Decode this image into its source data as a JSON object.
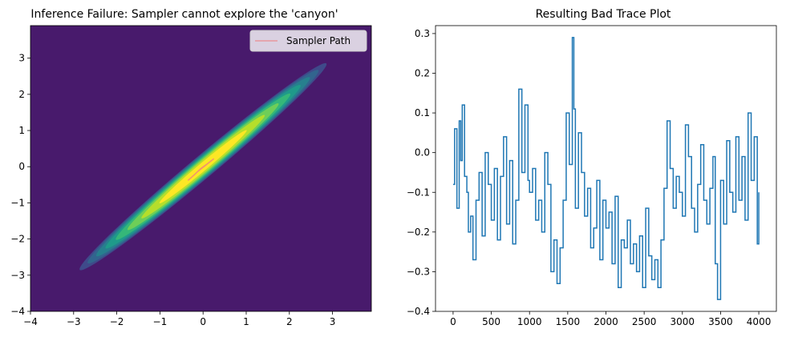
{
  "chart_data": [
    {
      "type": "contour",
      "title": "Inference Failure: Sampler cannot explore the 'canyon'",
      "xlabel": "",
      "ylabel": "",
      "xlim": [
        -4,
        3.9
      ],
      "ylim": [
        -4,
        3.9
      ],
      "xticks": [
        -4,
        -3,
        -2,
        -1,
        0,
        1,
        2,
        3
      ],
      "yticks": [
        -4,
        -3,
        -2,
        -1,
        0,
        1,
        2,
        3
      ],
      "background_color": "#481a6c",
      "distribution": {
        "family": "bivariate normal",
        "mean": [
          0,
          0
        ],
        "sd": [
          1,
          1
        ],
        "correlation": 0.99
      },
      "contour_levels": [
        {
          "level": 1,
          "color": "#3f4a8a"
        },
        {
          "level": 2,
          "color": "#32648e"
        },
        {
          "level": 3,
          "color": "#277f8e"
        },
        {
          "level": 4,
          "color": "#1f9a8a"
        },
        {
          "level": 5,
          "color": "#35b779"
        },
        {
          "level": 6,
          "color": "#6ece58"
        },
        {
          "level": 7,
          "color": "#b5de2b"
        },
        {
          "level": 8,
          "color": "#fde725"
        }
      ],
      "sampler_path": {
        "label": "Sampler Path",
        "color": "#f08080",
        "points": [
          [
            -0.35,
            -0.38
          ],
          [
            -0.2,
            -0.22
          ],
          [
            -0.05,
            -0.05
          ],
          [
            0.1,
            0.08
          ],
          [
            0.25,
            0.22
          ],
          [
            0.05,
            0.03
          ],
          [
            -0.12,
            -0.13
          ]
        ]
      },
      "legend": {
        "position": "top-right",
        "entries": [
          "Sampler Path"
        ]
      }
    },
    {
      "type": "line",
      "title": "Resulting Bad Trace Plot",
      "xlabel": "",
      "ylabel": "",
      "xlim": [
        -230,
        4230
      ],
      "ylim": [
        -0.4,
        0.32
      ],
      "xticks": [
        0,
        500,
        1000,
        1500,
        2000,
        2500,
        3000,
        3500,
        4000
      ],
      "yticks": [
        -0.4,
        -0.3,
        -0.2,
        -0.1,
        0.0,
        0.1,
        0.2,
        0.3
      ],
      "ytick_labels": [
        "−0.4",
        "−0.3",
        "−0.2",
        "−0.1",
        "0.0",
        "0.1",
        "0.2",
        "0.3"
      ],
      "series": [
        {
          "name": "trace",
          "color": "#1f77b4",
          "x": [
            0,
            20,
            50,
            80,
            100,
            120,
            150,
            180,
            200,
            230,
            260,
            300,
            340,
            380,
            420,
            460,
            500,
            540,
            580,
            620,
            660,
            700,
            740,
            780,
            820,
            860,
            900,
            940,
            980,
            1000,
            1040,
            1080,
            1120,
            1160,
            1200,
            1240,
            1280,
            1320,
            1360,
            1400,
            1440,
            1480,
            1520,
            1560,
            1580,
            1600,
            1640,
            1680,
            1720,
            1760,
            1800,
            1840,
            1880,
            1920,
            1960,
            2000,
            2040,
            2080,
            2120,
            2160,
            2200,
            2240,
            2280,
            2320,
            2360,
            2400,
            2440,
            2480,
            2520,
            2560,
            2600,
            2640,
            2680,
            2720,
            2760,
            2800,
            2840,
            2880,
            2920,
            2960,
            3000,
            3040,
            3080,
            3120,
            3160,
            3200,
            3240,
            3280,
            3320,
            3360,
            3400,
            3430,
            3460,
            3500,
            3540,
            3580,
            3620,
            3660,
            3700,
            3740,
            3780,
            3820,
            3860,
            3900,
            3940,
            3980,
            4000
          ],
          "y": [
            -0.08,
            0.06,
            -0.14,
            0.08,
            -0.02,
            0.12,
            -0.06,
            -0.1,
            -0.2,
            -0.16,
            -0.27,
            -0.12,
            -0.05,
            -0.21,
            0.0,
            -0.08,
            -0.17,
            -0.04,
            -0.22,
            -0.06,
            0.04,
            -0.18,
            -0.02,
            -0.23,
            -0.12,
            0.16,
            -0.05,
            0.12,
            -0.07,
            -0.1,
            -0.04,
            -0.17,
            -0.12,
            -0.2,
            0.0,
            -0.08,
            -0.3,
            -0.22,
            -0.33,
            -0.24,
            -0.12,
            0.1,
            -0.03,
            0.29,
            0.11,
            -0.14,
            0.05,
            -0.05,
            -0.16,
            -0.09,
            -0.24,
            -0.19,
            -0.07,
            -0.27,
            -0.12,
            -0.19,
            -0.15,
            -0.28,
            -0.11,
            -0.34,
            -0.22,
            -0.24,
            -0.17,
            -0.28,
            -0.23,
            -0.3,
            -0.21,
            -0.34,
            -0.14,
            -0.26,
            -0.32,
            -0.27,
            -0.34,
            -0.22,
            -0.09,
            0.08,
            -0.04,
            -0.14,
            -0.06,
            -0.1,
            -0.16,
            0.07,
            -0.01,
            -0.14,
            -0.2,
            -0.08,
            0.02,
            -0.12,
            -0.18,
            -0.09,
            -0.01,
            -0.28,
            -0.37,
            -0.07,
            -0.18,
            0.03,
            -0.1,
            -0.15,
            0.04,
            -0.12,
            -0.01,
            -0.17,
            0.1,
            -0.07,
            0.04,
            -0.23,
            -0.1
          ]
        }
      ]
    }
  ]
}
